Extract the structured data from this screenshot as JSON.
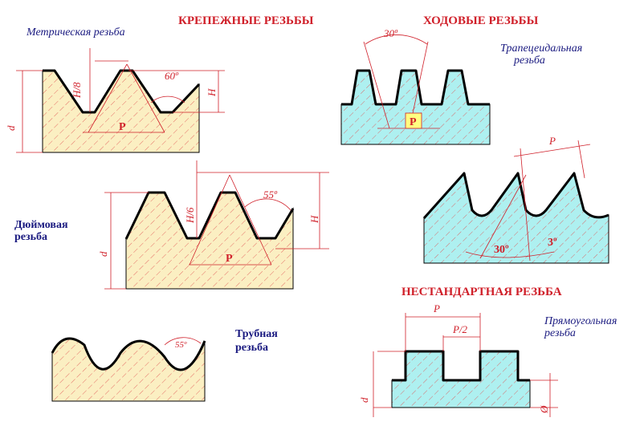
{
  "headers": {
    "fastening": "КРЕПЕЖНЫЕ РЕЗЬБЫ",
    "running": "ХОДОВЫЕ РЕЗЬБЫ",
    "nonstandard": "НЕСТАНДАРТНАЯ РЕЗЬБА"
  },
  "threads": [
    {
      "name": [
        "Метрическая резьба"
      ],
      "dims": [
        "d",
        "H/8",
        "H",
        "P",
        "60º"
      ]
    },
    {
      "name": [
        "Трапецеидальная",
        "резьба"
      ],
      "dims": [
        "30º",
        "P"
      ]
    },
    {
      "dims": [
        "P",
        "30º",
        "3º"
      ]
    },
    {
      "name": [
        "Дюймовая",
        "резьба"
      ],
      "dims": [
        "d",
        "H/6",
        "H",
        "P",
        "55º"
      ]
    },
    {
      "name": [
        "Трубная",
        "резьба"
      ],
      "dims": [
        "55º"
      ]
    },
    {
      "name": [
        "Прямоугольная",
        "резьба"
      ],
      "dims": [
        "P",
        "P/2",
        "d",
        "Ø"
      ]
    }
  ]
}
